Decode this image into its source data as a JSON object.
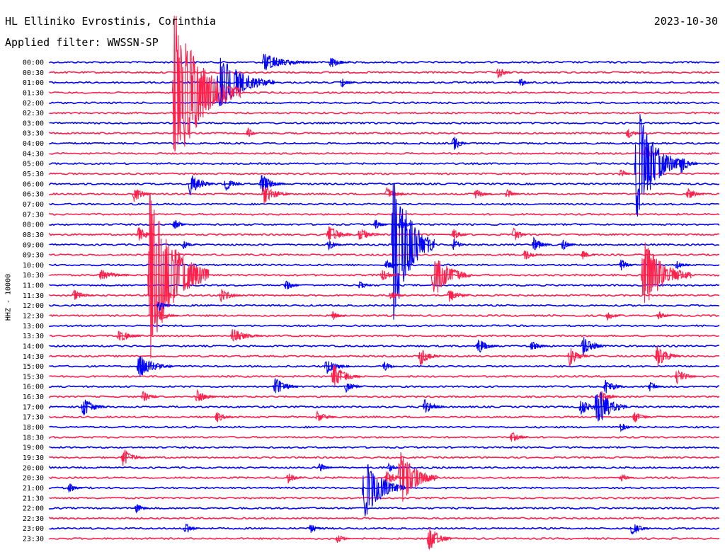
{
  "header": {
    "station": "HL Elliniko Evrostinis, Corinthia",
    "date": "2023-10-30",
    "filter": "Applied filter: WWSSN-SP"
  },
  "chart_data": {
    "type": "line",
    "title": "HL Elliniko Evrostinis, Corinthia",
    "ylabel": "HHZ - 10000",
    "categories": [
      "00:00",
      "00:30",
      "01:00",
      "01:30",
      "02:00",
      "02:30",
      "03:00",
      "03:30",
      "04:00",
      "04:30",
      "05:00",
      "05:30",
      "06:00",
      "06:30",
      "07:00",
      "07:30",
      "08:00",
      "08:30",
      "09:00",
      "09:30",
      "10:00",
      "10:30",
      "11:00",
      "11:30",
      "12:00",
      "12:30",
      "13:00",
      "13:30",
      "14:00",
      "14:30",
      "15:00",
      "15:30",
      "16:00",
      "16:30",
      "17:00",
      "17:30",
      "18:00",
      "18:30",
      "19:00",
      "19:30",
      "20:00",
      "20:30",
      "21:00",
      "21:30",
      "22:00",
      "22:30",
      "23:00",
      "23:30"
    ],
    "colors": [
      "#0000ff",
      "#ff1f4b"
    ],
    "x_range_minutes": [
      0,
      30
    ],
    "events": [
      [
        0,
        9.5,
        0.9,
        1.4
      ],
      [
        0,
        12.5,
        0.6,
        0.5
      ],
      [
        1,
        20.0,
        0.7,
        0.3
      ],
      [
        2,
        7.5,
        3.0,
        1.5
      ],
      [
        2,
        13.0,
        0.5,
        0.3
      ],
      [
        2,
        21.0,
        0.5,
        0.2
      ],
      [
        3,
        5.5,
        8.5,
        1.8
      ],
      [
        7,
        8.8,
        0.6,
        0.2
      ],
      [
        7,
        25.8,
        0.6,
        0.3
      ],
      [
        8,
        18.0,
        0.9,
        0.3
      ],
      [
        9,
        26.6,
        0.7,
        0.3
      ],
      [
        10,
        26.2,
        6.0,
        1.2
      ],
      [
        10,
        28.2,
        1.0,
        0.4
      ],
      [
        11,
        25.5,
        0.6,
        0.2
      ],
      [
        12,
        6.2,
        1.2,
        0.6
      ],
      [
        12,
        7.8,
        0.7,
        0.4
      ],
      [
        12,
        9.4,
        1.0,
        0.6
      ],
      [
        13,
        3.7,
        0.9,
        0.4
      ],
      [
        13,
        9.5,
        1.0,
        0.7
      ],
      [
        13,
        15.0,
        0.7,
        0.5
      ],
      [
        13,
        19.0,
        0.5,
        0.4
      ],
      [
        13,
        20.4,
        0.5,
        0.3
      ],
      [
        13,
        28.5,
        0.7,
        0.4
      ],
      [
        16,
        5.5,
        0.6,
        0.3
      ],
      [
        16,
        14.5,
        0.6,
        0.3
      ],
      [
        16,
        15.6,
        0.7,
        0.3
      ],
      [
        17,
        3.9,
        0.8,
        0.4
      ],
      [
        17,
        12.4,
        1.0,
        0.6
      ],
      [
        17,
        13.8,
        0.8,
        0.5
      ],
      [
        17,
        18.0,
        0.6,
        0.4
      ],
      [
        17,
        20.7,
        0.8,
        0.3
      ],
      [
        18,
        5.9,
        0.5,
        0.3
      ],
      [
        18,
        12.4,
        0.6,
        0.3
      ],
      [
        18,
        18.0,
        0.6,
        0.3
      ],
      [
        18,
        21.6,
        0.8,
        0.4
      ],
      [
        18,
        22.9,
        0.6,
        0.3
      ],
      [
        18,
        15.3,
        8.0,
        1.1
      ],
      [
        19,
        21.2,
        0.6,
        0.4
      ],
      [
        19,
        23.8,
        0.5,
        0.3
      ],
      [
        20,
        15.0,
        0.6,
        0.3
      ],
      [
        20,
        25.5,
        0.6,
        0.3
      ],
      [
        20,
        28.0,
        0.5,
        0.3
      ],
      [
        21,
        2.2,
        0.6,
        0.8
      ],
      [
        21,
        4.4,
        9.0,
        1.6
      ],
      [
        21,
        14.8,
        0.6,
        0.4
      ],
      [
        21,
        17.1,
        2.4,
        1.0
      ],
      [
        21,
        26.5,
        3.6,
        1.3
      ],
      [
        22,
        10.5,
        0.6,
        0.3
      ],
      [
        22,
        13.8,
        0.5,
        0.3
      ],
      [
        23,
        1.0,
        0.6,
        0.5
      ],
      [
        23,
        7.6,
        0.8,
        0.5
      ],
      [
        23,
        15.2,
        0.5,
        0.3
      ],
      [
        23,
        17.8,
        0.8,
        0.5
      ],
      [
        24,
        4.8,
        0.6,
        0.3
      ],
      [
        25,
        4.8,
        0.6,
        0.5
      ],
      [
        25,
        12.6,
        0.5,
        0.3
      ],
      [
        25,
        24.9,
        0.5,
        0.3
      ],
      [
        25,
        27.2,
        0.5,
        0.3
      ],
      [
        27,
        3.0,
        0.7,
        0.6
      ],
      [
        27,
        8.1,
        0.8,
        0.8
      ],
      [
        28,
        19.1,
        0.8,
        0.5
      ],
      [
        28,
        21.5,
        0.6,
        0.4
      ],
      [
        28,
        23.8,
        1.0,
        0.6
      ],
      [
        29,
        16.5,
        1.0,
        0.5
      ],
      [
        29,
        23.2,
        1.0,
        0.5
      ],
      [
        29,
        27.1,
        1.2,
        0.6
      ],
      [
        30,
        3.9,
        1.2,
        0.9
      ],
      [
        30,
        12.3,
        0.8,
        0.6
      ],
      [
        30,
        14.9,
        0.5,
        0.3
      ],
      [
        31,
        12.6,
        1.4,
        0.7
      ],
      [
        31,
        28.0,
        0.8,
        0.5
      ],
      [
        32,
        10.0,
        1.0,
        0.6
      ],
      [
        32,
        13.2,
        0.6,
        0.4
      ],
      [
        32,
        24.8,
        0.8,
        0.5
      ],
      [
        32,
        26.8,
        0.5,
        0.3
      ],
      [
        33,
        4.1,
        0.6,
        0.4
      ],
      [
        33,
        6.5,
        0.7,
        0.5
      ],
      [
        33,
        24.6,
        0.8,
        0.4
      ],
      [
        34,
        1.4,
        1.0,
        0.6
      ],
      [
        34,
        16.7,
        0.8,
        0.5
      ],
      [
        34,
        23.7,
        0.9,
        0.5
      ],
      [
        34,
        24.4,
        2.2,
        0.8
      ],
      [
        35,
        7.4,
        0.6,
        0.4
      ],
      [
        35,
        11.9,
        0.6,
        0.5
      ],
      [
        35,
        26.1,
        0.6,
        0.4
      ],
      [
        36,
        25.5,
        0.5,
        0.3
      ],
      [
        37,
        20.6,
        0.6,
        0.4
      ],
      [
        39,
        3.2,
        1.0,
        0.5
      ],
      [
        40,
        12.0,
        0.5,
        0.3
      ],
      [
        40,
        15.1,
        0.5,
        0.3
      ],
      [
        41,
        15.0,
        0.8,
        0.5
      ],
      [
        41,
        15.6,
        3.0,
        1.0
      ],
      [
        41,
        10.6,
        0.6,
        0.3
      ],
      [
        41,
        25.5,
        0.5,
        0.3
      ],
      [
        42,
        14.0,
        3.2,
        1.1
      ],
      [
        42,
        0.8,
        0.6,
        0.3
      ],
      [
        44,
        3.8,
        0.5,
        0.3
      ],
      [
        46,
        6.0,
        0.6,
        0.3
      ],
      [
        46,
        11.6,
        0.5,
        0.3
      ],
      [
        46,
        26.0,
        0.8,
        0.4
      ],
      [
        47,
        12.8,
        0.5,
        0.3
      ],
      [
        47,
        16.9,
        1.4,
        0.6
      ]
    ]
  }
}
